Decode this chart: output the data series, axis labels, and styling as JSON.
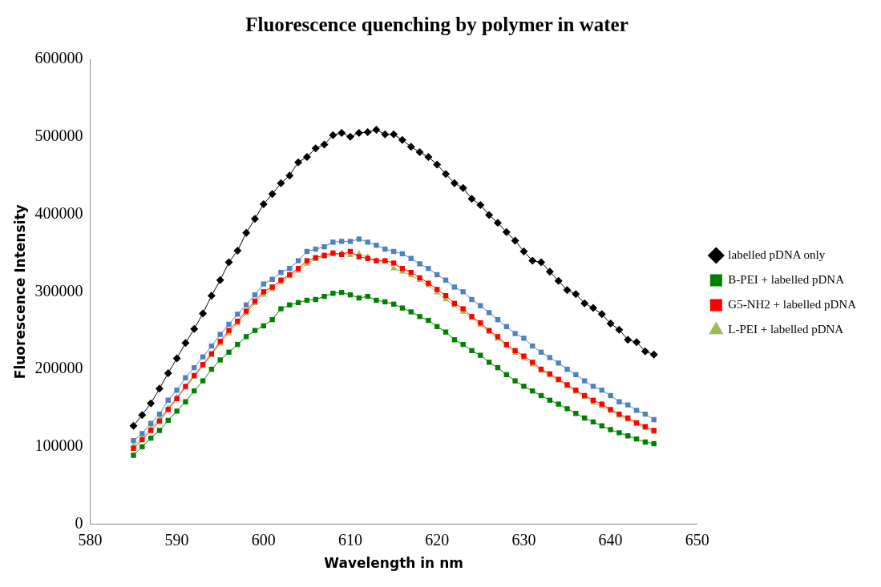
{
  "chart_data": {
    "type": "line",
    "title": "Fluorescence quenching by polymer in water",
    "xlabel": "Wavelength in nm",
    "ylabel": "Fluorescence Intensity",
    "x": [
      585,
      586,
      587,
      588,
      589,
      590,
      591,
      592,
      593,
      594,
      595,
      596,
      597,
      598,
      599,
      600,
      601,
      602,
      603,
      604,
      605,
      606,
      607,
      608,
      609,
      610,
      611,
      612,
      613,
      614,
      615,
      616,
      617,
      618,
      619,
      620,
      621,
      622,
      623,
      624,
      625,
      626,
      627,
      628,
      629,
      630,
      631,
      632,
      633,
      634,
      635,
      636,
      637,
      638,
      639,
      640,
      641,
      642,
      643,
      644,
      645
    ],
    "xlim": [
      580,
      650
    ],
    "xticks": [
      580,
      590,
      600,
      610,
      620,
      630,
      640,
      650
    ],
    "ylim": [
      0,
      600000
    ],
    "yticks": [
      0,
      100000,
      200000,
      300000,
      400000,
      500000,
      600000
    ],
    "grid": false,
    "legend": "right",
    "series": [
      {
        "name": "labelled pDNA only",
        "color": "#000000",
        "marker": "diamond",
        "values": [
          127000,
          141000,
          156000,
          175000,
          195000,
          214000,
          234000,
          252000,
          272000,
          295000,
          315000,
          338000,
          353000,
          376000,
          394000,
          413000,
          426000,
          440000,
          450000,
          467000,
          474000,
          485000,
          490000,
          502000,
          505000,
          500000,
          505000,
          506000,
          509000,
          503000,
          503000,
          496000,
          487000,
          480000,
          474000,
          464000,
          452000,
          440000,
          434000,
          420000,
          412000,
          399000,
          389000,
          377000,
          366000,
          352000,
          340000,
          338000,
          326000,
          314000,
          302000,
          297000,
          285000,
          279000,
          271000,
          259000,
          251000,
          238000,
          235000,
          223000,
          219000
        ]
      },
      {
        "name": "B-PEI + labelled pDNA",
        "color": "#008000",
        "marker": "square",
        "values": [
          89000,
          100000,
          111000,
          121000,
          134000,
          146000,
          158000,
          172000,
          185000,
          200000,
          212000,
          222000,
          232000,
          242000,
          250000,
          256000,
          264000,
          278000,
          283000,
          286000,
          289000,
          290000,
          294000,
          298000,
          299000,
          296000,
          292000,
          294000,
          289000,
          287000,
          284000,
          279000,
          274000,
          268000,
          263000,
          255000,
          248000,
          238000,
          232000,
          224000,
          218000,
          209000,
          202000,
          193000,
          185000,
          178000,
          172000,
          166000,
          160000,
          155000,
          149000,
          143000,
          137000,
          132000,
          127000,
          122000,
          118000,
          114000,
          110000,
          106000,
          104000
        ]
      },
      {
        "name": "G5-NH2 + labelled pDNA",
        "color": "#ff0000",
        "marker": "square",
        "values": [
          98000,
          109000,
          121000,
          133000,
          148000,
          162000,
          178000,
          192000,
          206000,
          220000,
          236000,
          250000,
          262000,
          275000,
          288000,
          300000,
          306000,
          315000,
          322000,
          330000,
          340000,
          344000,
          347000,
          350000,
          348000,
          352000,
          345000,
          343000,
          340000,
          340000,
          337000,
          330000,
          325000,
          318000,
          311000,
          303000,
          295000,
          285000,
          278000,
          268000,
          260000,
          250000,
          242000,
          232000,
          224000,
          217000,
          209000,
          200000,
          194000,
          187000,
          180000,
          173000,
          166000,
          160000,
          155000,
          148000,
          142000,
          137000,
          131000,
          126000,
          121000
        ]
      },
      {
        "color": "#4f81bd",
        "marker": "square",
        "values": [
          108000,
          117000,
          130000,
          142000,
          160000,
          173000,
          189000,
          202000,
          216000,
          230000,
          245000,
          258000,
          271000,
          283000,
          296000,
          310000,
          316000,
          325000,
          330000,
          340000,
          352000,
          355000,
          358000,
          364000,
          365000,
          365000,
          368000,
          364000,
          360000,
          355000,
          352000,
          349000,
          343000,
          336000,
          330000,
          322000,
          315000,
          306000,
          300000,
          290000,
          282000,
          273000,
          264000,
          255000,
          246000,
          240000,
          230000,
          222000,
          215000,
          208000,
          200000,
          193000,
          185000,
          178000,
          173000,
          166000,
          158000,
          154000,
          147000,
          142000,
          135000
        ]
      },
      {
        "name": "L-PEI + labelled pDNA",
        "color": "#9bbb59",
        "marker": "triangle",
        "values": [
          101000,
          112000,
          124000,
          136000,
          150000,
          164000,
          176000,
          190000,
          204000,
          218000,
          233000,
          246000,
          259000,
          272000,
          285000,
          296000,
          303000,
          312000,
          320000,
          327000,
          336000,
          342000,
          345000,
          348000,
          350000,
          347000,
          349000,
          345000,
          340000,
          339000,
          330000,
          326000,
          321000,
          315000,
          308000,
          299000,
          290000,
          282000,
          274000,
          266000,
          257000,
          248000,
          239000,
          230000,
          221000,
          214000,
          206000,
          198000,
          192000,
          185000,
          178000,
          171000,
          164000,
          157000,
          152000,
          146000,
          140000,
          135000,
          129000,
          124000,
          119000
        ]
      }
    ]
  }
}
